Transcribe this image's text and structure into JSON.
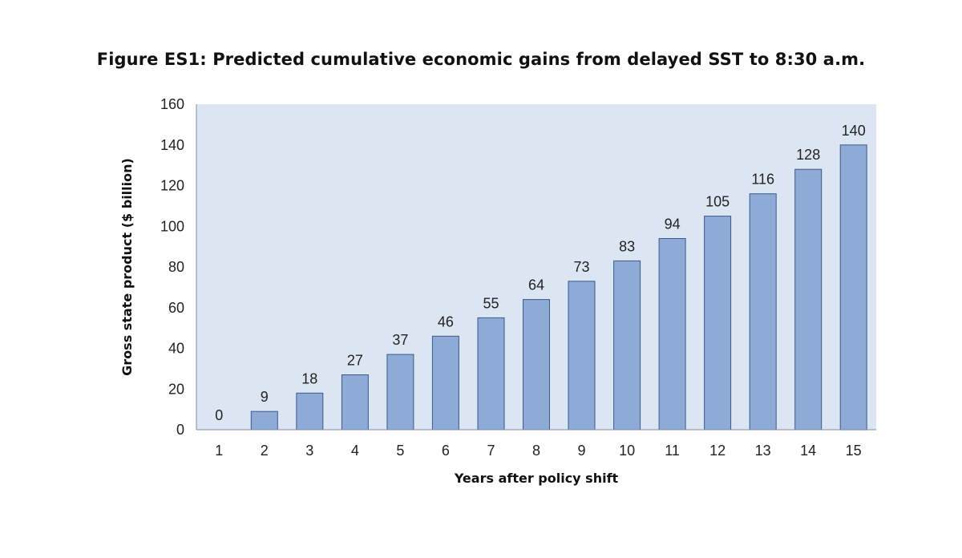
{
  "chart_data": {
    "type": "bar",
    "title": "Figure ES1: Predicted cumulative economic gains from delayed SST to 8:30 a.m.",
    "xlabel": "Years after policy shift",
    "ylabel": "Gross state product ($ billion)",
    "categories": [
      "1",
      "2",
      "3",
      "4",
      "5",
      "6",
      "7",
      "8",
      "9",
      "10",
      "11",
      "12",
      "13",
      "14",
      "15"
    ],
    "values": [
      0,
      9,
      18,
      27,
      37,
      46,
      55,
      64,
      73,
      83,
      94,
      105,
      116,
      128,
      140
    ],
    "ylim": [
      0,
      160
    ],
    "yticks": [
      0,
      20,
      40,
      60,
      80,
      100,
      120,
      140,
      160
    ],
    "grid": false,
    "data_labels": true,
    "legend": "none",
    "colors": {
      "bar_fill": "#8eaad6",
      "bar_stroke": "#3a5a8c",
      "plot_background": "#dce6f2",
      "axis": "#7f8fa6"
    }
  }
}
